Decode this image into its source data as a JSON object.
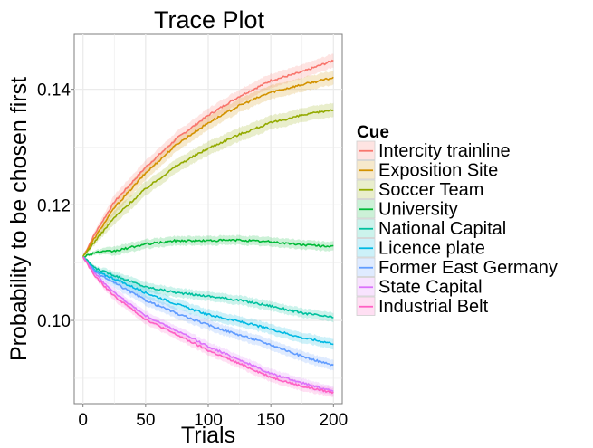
{
  "chart_data": {
    "type": "line",
    "title": "Trace Plot",
    "xlabel": "Trials",
    "ylabel": "Probability to be chosen first",
    "xlim": [
      -7,
      207
    ],
    "ylim": [
      0.0856,
      0.1495
    ],
    "xticks": [
      0,
      50,
      100,
      150,
      200
    ],
    "yticks": [
      0.1,
      0.12,
      0.14
    ],
    "ytick_labels": [
      "0.10",
      "0.12",
      "0.14"
    ],
    "grid": true,
    "background": "#ffffff",
    "grid_color": "#ebebeb",
    "legend_title": "Cue",
    "legend_position": "right",
    "confidence_band": true,
    "series": [
      {
        "name": "Intercity trainline",
        "color": "#F8766D",
        "x": [
          0,
          10,
          25,
          50,
          75,
          100,
          125,
          150,
          175,
          200
        ],
        "y": [
          0.111,
          0.1152,
          0.1205,
          0.1265,
          0.1315,
          0.1355,
          0.1388,
          0.1415,
          0.143,
          0.145
        ],
        "band": 0.0012
      },
      {
        "name": "Exposition Site",
        "color": "#D39200",
        "x": [
          0,
          10,
          25,
          50,
          75,
          100,
          125,
          150,
          175,
          200
        ],
        "y": [
          0.111,
          0.1145,
          0.1195,
          0.1255,
          0.1305,
          0.1342,
          0.1372,
          0.1395,
          0.1408,
          0.142
        ],
        "band": 0.0012
      },
      {
        "name": "Soccer Team",
        "color": "#93AA00",
        "x": [
          0,
          10,
          25,
          50,
          75,
          100,
          125,
          150,
          175,
          200
        ],
        "y": [
          0.111,
          0.1138,
          0.1178,
          0.1228,
          0.1268,
          0.1298,
          0.1322,
          0.1342,
          0.1355,
          0.1365
        ],
        "band": 0.0012
      },
      {
        "name": "University",
        "color": "#00BA38",
        "x": [
          0,
          10,
          25,
          50,
          75,
          100,
          125,
          150,
          175,
          200
        ],
        "y": [
          0.111,
          0.1118,
          0.112,
          0.1132,
          0.1138,
          0.1138,
          0.1139,
          0.1136,
          0.1131,
          0.1128
        ],
        "band": 0.0008
      },
      {
        "name": "National Capital",
        "color": "#00C19F",
        "x": [
          0,
          10,
          25,
          50,
          75,
          100,
          125,
          150,
          175,
          200
        ],
        "y": [
          0.111,
          0.109,
          0.1078,
          0.1058,
          0.1048,
          0.1042,
          0.1035,
          0.1025,
          0.1013,
          0.1005
        ],
        "band": 0.0008
      },
      {
        "name": "Licence plate",
        "color": "#00B9E3",
        "x": [
          0,
          10,
          25,
          50,
          75,
          100,
          125,
          150,
          175,
          200
        ],
        "y": [
          0.111,
          0.1085,
          0.1072,
          0.1048,
          0.1028,
          0.101,
          0.0998,
          0.0985,
          0.097,
          0.096
        ],
        "band": 0.0009
      },
      {
        "name": "Former East Germany",
        "color": "#619CFF",
        "x": [
          0,
          10,
          25,
          50,
          75,
          100,
          125,
          150,
          175,
          200
        ],
        "y": [
          0.111,
          0.1083,
          0.1065,
          0.1035,
          0.1012,
          0.0992,
          0.0975,
          0.0958,
          0.0938,
          0.0922
        ],
        "band": 0.0009
      },
      {
        "name": "State Capital",
        "color": "#DB72FB",
        "x": [
          0,
          10,
          25,
          50,
          75,
          100,
          125,
          150,
          175,
          200
        ],
        "y": [
          0.111,
          0.108,
          0.1048,
          0.1008,
          0.0982,
          0.0955,
          0.0932,
          0.0908,
          0.0892,
          0.0878
        ],
        "band": 0.0008
      },
      {
        "name": "Industrial Belt",
        "color": "#FF61C3",
        "x": [
          0,
          10,
          25,
          50,
          75,
          100,
          125,
          150,
          175,
          200
        ],
        "y": [
          0.111,
          0.1075,
          0.1042,
          0.1002,
          0.0975,
          0.0948,
          0.0925,
          0.0902,
          0.0886,
          0.0875
        ],
        "band": 0.0008
      }
    ]
  }
}
